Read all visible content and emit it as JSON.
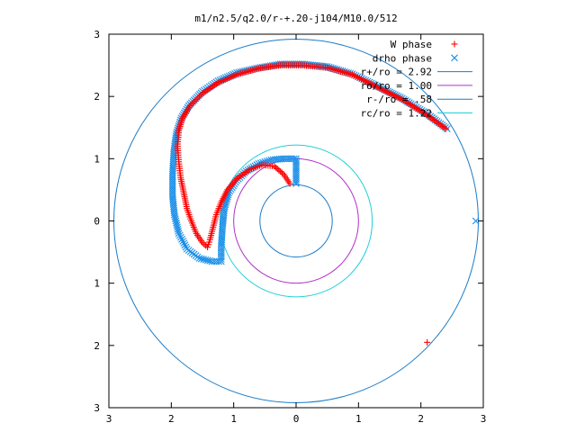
{
  "chart_data": {
    "type": "scatter",
    "title": "m1/n2.5/q2.0/r-+.20-j104/M10.0/512",
    "xlabel": "",
    "ylabel": "",
    "xlim": [
      -3,
      3
    ],
    "ylim": [
      -3,
      3
    ],
    "x_ticks": [
      {
        "value": -3,
        "label": "3"
      },
      {
        "value": -2,
        "label": "2"
      },
      {
        "value": -1,
        "label": "1"
      },
      {
        "value": 0,
        "label": "0"
      },
      {
        "value": 1,
        "label": "1"
      },
      {
        "value": 2,
        "label": "2"
      },
      {
        "value": 3,
        "label": "3"
      }
    ],
    "y_ticks": [
      {
        "value": 3,
        "label": "3"
      },
      {
        "value": 2,
        "label": "2"
      },
      {
        "value": 1,
        "label": "1"
      },
      {
        "value": 0,
        "label": "0"
      },
      {
        "value": -1,
        "label": "1"
      },
      {
        "value": -2,
        "label": "2"
      },
      {
        "value": -3,
        "label": "3"
      }
    ],
    "grid": false,
    "legend_position": "top-right",
    "series": [
      {
        "name": "W phase",
        "marker": "plus",
        "color": "#ff0000",
        "points": [
          [
            -0.1,
            0.6
          ],
          [
            -0.2,
            0.75
          ],
          [
            -0.35,
            0.88
          ],
          [
            -0.55,
            0.9
          ],
          [
            -0.75,
            0.82
          ],
          [
            -0.95,
            0.68
          ],
          [
            -1.1,
            0.5
          ],
          [
            -1.2,
            0.3
          ],
          [
            -1.28,
            0.1
          ],
          [
            -1.33,
            -0.1
          ],
          [
            -1.38,
            -0.3
          ],
          [
            -1.42,
            -0.42
          ],
          [
            -1.5,
            -0.35
          ],
          [
            -1.6,
            -0.2
          ],
          [
            -1.68,
            0.0
          ],
          [
            -1.75,
            0.2
          ],
          [
            -1.8,
            0.45
          ],
          [
            -1.85,
            0.7
          ],
          [
            -1.88,
            0.95
          ],
          [
            -1.9,
            1.2
          ],
          [
            -1.88,
            1.45
          ],
          [
            -1.82,
            1.65
          ],
          [
            -1.7,
            1.85
          ],
          [
            -1.5,
            2.05
          ],
          [
            -1.25,
            2.22
          ],
          [
            -0.95,
            2.35
          ],
          [
            -0.6,
            2.45
          ],
          [
            -0.25,
            2.5
          ],
          [
            0.1,
            2.5
          ],
          [
            0.5,
            2.46
          ],
          [
            0.9,
            2.35
          ],
          [
            1.3,
            2.15
          ],
          [
            1.7,
            1.95
          ],
          [
            2.1,
            1.7
          ],
          [
            2.4,
            1.48
          ],
          [
            2.1,
            -1.95
          ]
        ]
      },
      {
        "name": "drho phase",
        "marker": "cross",
        "color": "#1a8fe8",
        "points": [
          [
            0,
            0.6
          ],
          [
            0,
            0.8
          ],
          [
            0,
            1.0
          ],
          [
            -0.2,
            1.0
          ],
          [
            -0.4,
            0.98
          ],
          [
            -0.6,
            0.92
          ],
          [
            -0.8,
            0.8
          ],
          [
            -0.95,
            0.65
          ],
          [
            -1.08,
            0.45
          ],
          [
            -1.15,
            0.2
          ],
          [
            -1.18,
            -0.1
          ],
          [
            -1.2,
            -0.4
          ],
          [
            -1.2,
            -0.65
          ],
          [
            -1.35,
            -0.65
          ],
          [
            -1.55,
            -0.6
          ],
          [
            -1.75,
            -0.45
          ],
          [
            -1.88,
            -0.2
          ],
          [
            -1.95,
            0.1
          ],
          [
            -1.98,
            0.4
          ],
          [
            -1.98,
            0.75
          ],
          [
            -1.96,
            1.1
          ],
          [
            -1.92,
            1.4
          ],
          [
            -1.84,
            1.65
          ],
          [
            -1.72,
            1.85
          ],
          [
            -1.5,
            2.08
          ],
          [
            -1.25,
            2.25
          ],
          [
            -0.95,
            2.38
          ],
          [
            -0.6,
            2.46
          ],
          [
            -0.25,
            2.52
          ],
          [
            0.1,
            2.52
          ],
          [
            0.5,
            2.48
          ],
          [
            0.9,
            2.36
          ],
          [
            1.3,
            2.17
          ],
          [
            1.7,
            1.97
          ],
          [
            2.1,
            1.72
          ],
          [
            2.42,
            1.48
          ],
          [
            2.88,
            0.0
          ]
        ]
      },
      {
        "name": "r+/ro = 2.92",
        "type": "circle",
        "radius": 2.92,
        "color": "#1a7cc8"
      },
      {
        "name": "ro/ro = 1.00",
        "type": "circle",
        "radius": 1.0,
        "color": "#b030c8"
      },
      {
        "name": "r-/ro = .58",
        "type": "circle",
        "radius": 0.58,
        "color": "#1a7cc8"
      },
      {
        "name": "rc/ro = 1.22",
        "type": "circle",
        "radius": 1.22,
        "color": "#22d0d8"
      }
    ]
  }
}
